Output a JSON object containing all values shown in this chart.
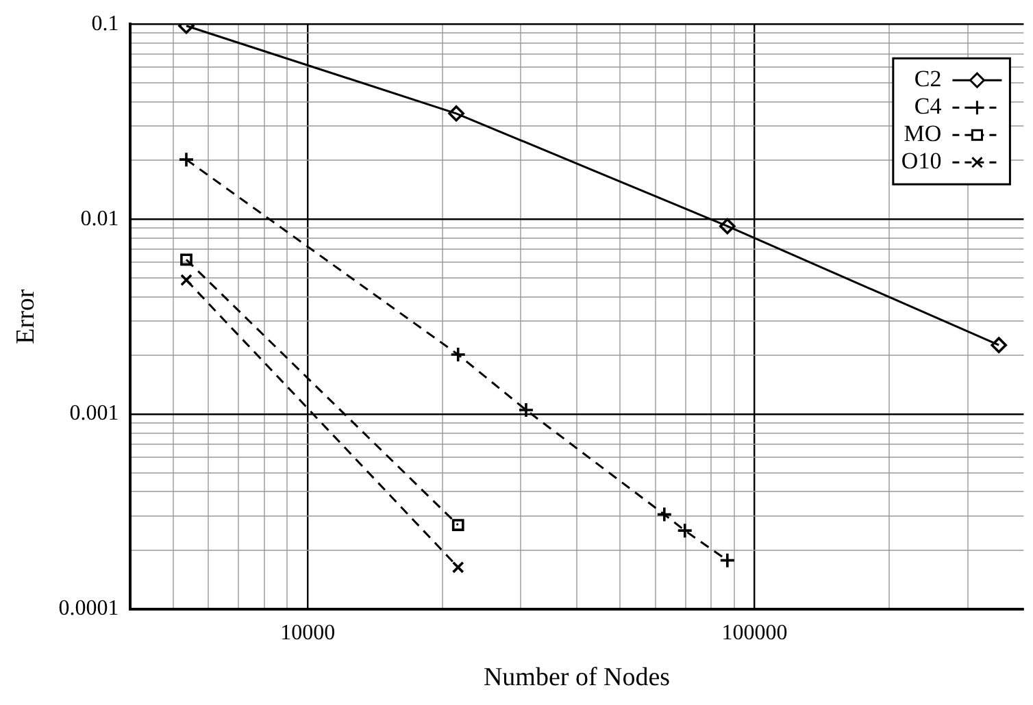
{
  "chart_data": {
    "type": "line",
    "xlabel": "Number of Nodes",
    "ylabel": "Error",
    "log": "xy",
    "xlim": [
      4000,
      400000
    ],
    "ylim": [
      0.0001,
      0.1
    ],
    "xticks": [
      {
        "value": 5000,
        "label": null
      },
      {
        "value": 6000,
        "label": null
      },
      {
        "value": 7000,
        "label": null
      },
      {
        "value": 8000,
        "label": null
      },
      {
        "value": 9000,
        "label": null
      },
      10000,
      {
        "value": 20000,
        "label": null
      },
      {
        "value": 30000,
        "label": null
      },
      {
        "value": 40000,
        "label": null
      },
      {
        "value": 50000,
        "label": null
      },
      {
        "value": 60000,
        "label": null
      },
      {
        "value": 70000,
        "label": null
      },
      {
        "value": 80000,
        "label": null
      },
      {
        "value": 90000,
        "label": null
      },
      100000,
      {
        "value": 200000,
        "label": null
      },
      {
        "value": 300000,
        "label": null
      }
    ],
    "yticks": [
      0.0001,
      {
        "value": 0.0002,
        "label": null
      },
      {
        "value": 0.0003,
        "label": null
      },
      {
        "value": 0.0004,
        "label": null
      },
      {
        "value": 0.0005,
        "label": null
      },
      {
        "value": 0.0006,
        "label": null
      },
      {
        "value": 0.0007,
        "label": null
      },
      {
        "value": 0.0008,
        "label": null
      },
      {
        "value": 0.0009,
        "label": null
      },
      0.001,
      {
        "value": 0.002,
        "label": null
      },
      {
        "value": 0.003,
        "label": null
      },
      {
        "value": 0.004,
        "label": null
      },
      {
        "value": 0.005,
        "label": null
      },
      {
        "value": 0.006,
        "label": null
      },
      {
        "value": 0.007,
        "label": null
      },
      {
        "value": 0.008,
        "label": null
      },
      {
        "value": 0.009,
        "label": null
      },
      0.01,
      {
        "value": 0.02,
        "label": null
      },
      {
        "value": 0.03,
        "label": null
      },
      {
        "value": 0.04,
        "label": null
      },
      {
        "value": 0.05,
        "label": null
      },
      {
        "value": 0.06,
        "label": null
      },
      {
        "value": 0.07,
        "label": null
      },
      {
        "value": 0.08,
        "label": null
      },
      {
        "value": 0.09,
        "label": null
      },
      0.1
    ],
    "grid": true,
    "legend": "top right",
    "series": [
      {
        "name": "C2",
        "color": "#000000",
        "marker": "diamond",
        "line_style": "solid",
        "x": [
          5350,
          21500,
          86900,
          352000
        ],
        "values": [
          0.098,
          0.0348,
          0.0092,
          0.00226
        ]
      },
      {
        "name": "C4",
        "color": "#000000",
        "marker": "cross",
        "line_style": "dashed",
        "x": [
          5350,
          21700,
          30800,
          62800,
          69800,
          86900
        ],
        "values": [
          0.0202,
          0.00202,
          0.00105,
          0.000306,
          0.000253,
          0.000178
        ]
      },
      {
        "name": "MO",
        "color": "#000000",
        "marker": "square",
        "line_style": "dashed",
        "x": [
          5350,
          21700
        ],
        "values": [
          0.0062,
          0.00027
        ]
      },
      {
        "name": "O10",
        "color": "#000000",
        "marker": "x",
        "line_style": "dashed",
        "x": [
          5350,
          21700
        ],
        "values": [
          0.00487,
          0.000164
        ]
      }
    ]
  }
}
